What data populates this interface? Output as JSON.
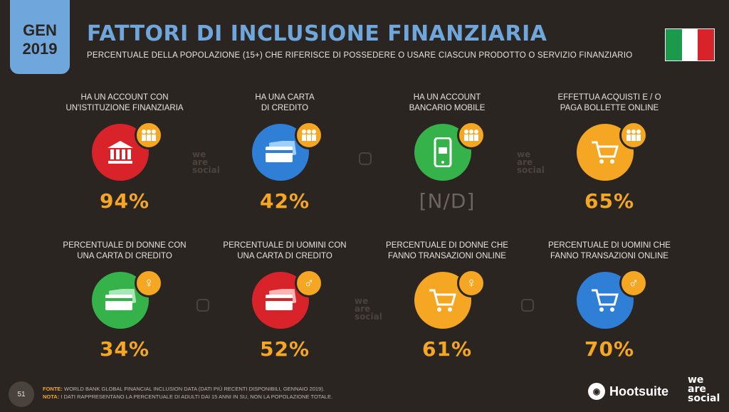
{
  "header": {
    "gen_month": "GEN",
    "gen_year": "2019",
    "title": "FATTORI DI INCLUSIONE FINANZIARIA",
    "subtitle": "PERCENTUALE DELLA POPOLAZIONE (15+) CHE RIFERISCE DI POSSEDERE O USARE CIASCUN PRODOTTO O SERVIZIO FINANZIARIO"
  },
  "flag": {
    "colors": [
      "#1a9a4a",
      "#ffffff",
      "#d8232a"
    ]
  },
  "stats": [
    {
      "label": "HA UN ACCOUNT CON\nUN'ISTITUZIONE FINANZIARIA",
      "value": "94%",
      "color": "#d8232a",
      "icon": "bank-icon",
      "badge": "people-icon",
      "badge_glyph": "👥"
    },
    {
      "label": "HA UNA CARTA\nDI CREDITO",
      "value": "42%",
      "color": "#2f7fd6",
      "icon": "credit-card-icon",
      "badge": "people-icon",
      "badge_glyph": "👥"
    },
    {
      "label": "HA UN ACCOUNT\nBANCARIO MOBILE",
      "value": "[N/D]",
      "color": "#35b24a",
      "icon": "mobile-banking-icon",
      "badge": "people-icon",
      "badge_glyph": "👥"
    },
    {
      "label": "EFFETTUA ACQUISTI E / O\nPAGA BOLLETTE ONLINE",
      "value": "65%",
      "color": "#f5a623",
      "icon": "shopping-cart-icon",
      "badge": "people-icon",
      "badge_glyph": "👥"
    },
    {
      "label": "PERCENTUALE DI DONNE CON\nUNA CARTA DI CREDITO",
      "value": "34%",
      "color": "#35b24a",
      "icon": "credit-card-icon",
      "badge": "female-icon",
      "badge_glyph": "♀"
    },
    {
      "label": "PERCENTUALE DI UOMINI CON\nUNA CARTA DI CREDITO",
      "value": "52%",
      "color": "#d8232a",
      "icon": "credit-card-icon",
      "badge": "male-icon",
      "badge_glyph": "♂"
    },
    {
      "label": "PERCENTUALE DI DONNE CHE\nFANNO TRANSAZIONI ONLINE",
      "value": "61%",
      "color": "#f5a623",
      "icon": "shopping-cart-icon",
      "badge": "female-icon",
      "badge_glyph": "♀"
    },
    {
      "label": "PERCENTUALE DI UOMINI CHE\nFANNO TRANSAZIONI ONLINE",
      "value": "70%",
      "color": "#2f7fd6",
      "icon": "shopping-cart-icon",
      "badge": "male-icon",
      "badge_glyph": "♂"
    }
  ],
  "watermark": {
    "line1": "we",
    "line2": "are",
    "line3": "social"
  },
  "footer": {
    "source_label": "FONTE:",
    "source_text": "WORLD BANK GLOBAL FINANCIAL INCLUSION DATA (DATI PIÙ RECENTI DISPONIBILI, GENNAIO 2019).",
    "note_label": "NOTA:",
    "note_text": "I DATI RAPPRESENTANO LA PERCENTUALE DI ADULTI DAI 15 ANNI IN SU, NON LA POPOLAZIONE TOTALE.",
    "page_number": "51"
  },
  "brands": {
    "hootsuite": "Hootsuite",
    "was_line1": "we",
    "was_line2": "are",
    "was_line3": "social"
  }
}
